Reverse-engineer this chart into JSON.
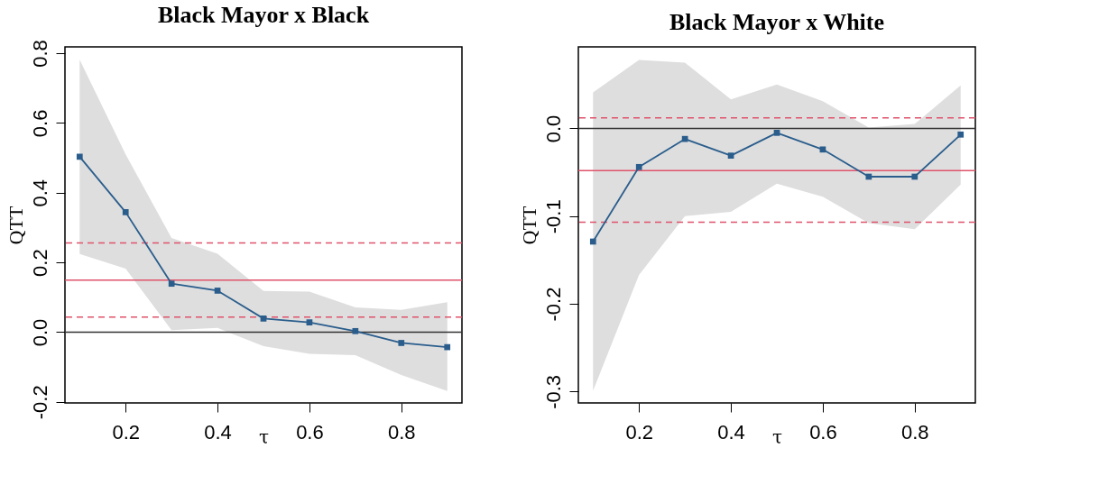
{
  "chart_data": [
    {
      "type": "line",
      "title": "Black Mayor x Black",
      "xlabel": "τ",
      "ylabel": "QTT",
      "x": [
        0.1,
        0.2,
        0.3,
        0.4,
        0.5,
        0.6,
        0.7,
        0.8,
        0.9
      ],
      "series": [
        {
          "color": "#2a5d8c",
          "values": [
            0.503,
            0.344,
            0.139,
            0.119,
            0.039,
            0.028,
            0.003,
            -0.031,
            -0.043
          ],
          "lower": [
            0.224,
            0.182,
            0.006,
            0.012,
            -0.04,
            -0.062,
            -0.066,
            -0.123,
            -0.169
          ],
          "upper": [
            0.781,
            0.51,
            0.27,
            0.225,
            0.118,
            0.116,
            0.071,
            0.064,
            0.086
          ]
        }
      ],
      "xlim": [
        0.068,
        0.932
      ],
      "xticks": [
        0.2,
        0.4,
        0.6,
        0.8
      ],
      "ylim": [
        -0.203,
        0.818
      ],
      "yticks": [
        {
          "value": -0.2,
          "label": "-0.2"
        },
        {
          "value": 0,
          "label": "0.0"
        },
        {
          "value": 0.2,
          "label": "0.2"
        },
        {
          "value": 0.4,
          "label": "0.4"
        },
        {
          "value": 0.6,
          "label": "0.6"
        },
        {
          "value": 0.8,
          "label": "0.8"
        }
      ],
      "ref_lines": [
        {
          "axis": "y",
          "value": 0,
          "color": "#333333",
          "line_style": "solid"
        },
        {
          "axis": "y",
          "value": 0.149,
          "color": "#df536b",
          "line_style": "solid"
        },
        {
          "axis": "y",
          "value": 0.256,
          "color": "#df536b",
          "line_style": "dashed"
        },
        {
          "axis": "y",
          "value": 0.043,
          "color": "#df536b",
          "line_style": "dashed"
        }
      ],
      "marker": "square",
      "line_style": "solid",
      "grid": false
    },
    {
      "type": "line",
      "title": "Black Mayor x White",
      "xlabel": "τ",
      "ylabel": "QTT",
      "x": [
        0.1,
        0.2,
        0.3,
        0.4,
        0.5,
        0.6,
        0.7,
        0.8,
        0.9
      ],
      "series": [
        {
          "color": "#2a5d8c",
          "values": [
            -0.129,
            -0.044,
            -0.012,
            -0.031,
            -0.005,
            -0.024,
            -0.055,
            -0.055,
            -0.007
          ],
          "lower": [
            -0.299,
            -0.167,
            -0.1,
            -0.095,
            -0.063,
            -0.078,
            -0.108,
            -0.115,
            -0.064
          ],
          "upper": [
            0.041,
            0.078,
            0.075,
            0.033,
            0.05,
            0.031,
            0.001,
            0.005,
            0.049
          ]
        }
      ],
      "xlim": [
        0.068,
        0.932
      ],
      "xticks": [
        0.2,
        0.4,
        0.6,
        0.8
      ],
      "ylim": [
        -0.313,
        0.093
      ],
      "yticks": [
        {
          "value": -0.3,
          "label": "-0.3"
        },
        {
          "value": -0.2,
          "label": "-0.2"
        },
        {
          "value": -0.1,
          "label": "-0.1"
        },
        {
          "value": 0,
          "label": "0.0"
        }
      ],
      "ref_lines": [
        {
          "axis": "y",
          "value": 0,
          "color": "#333333",
          "line_style": "solid"
        },
        {
          "axis": "y",
          "value": -0.048,
          "color": "#df536b",
          "line_style": "solid"
        },
        {
          "axis": "y",
          "value": 0.012,
          "color": "#df536b",
          "line_style": "dashed"
        },
        {
          "axis": "y",
          "value": -0.107,
          "color": "#df536b",
          "line_style": "dashed"
        }
      ],
      "marker": "square",
      "line_style": "solid",
      "grid": false
    }
  ]
}
